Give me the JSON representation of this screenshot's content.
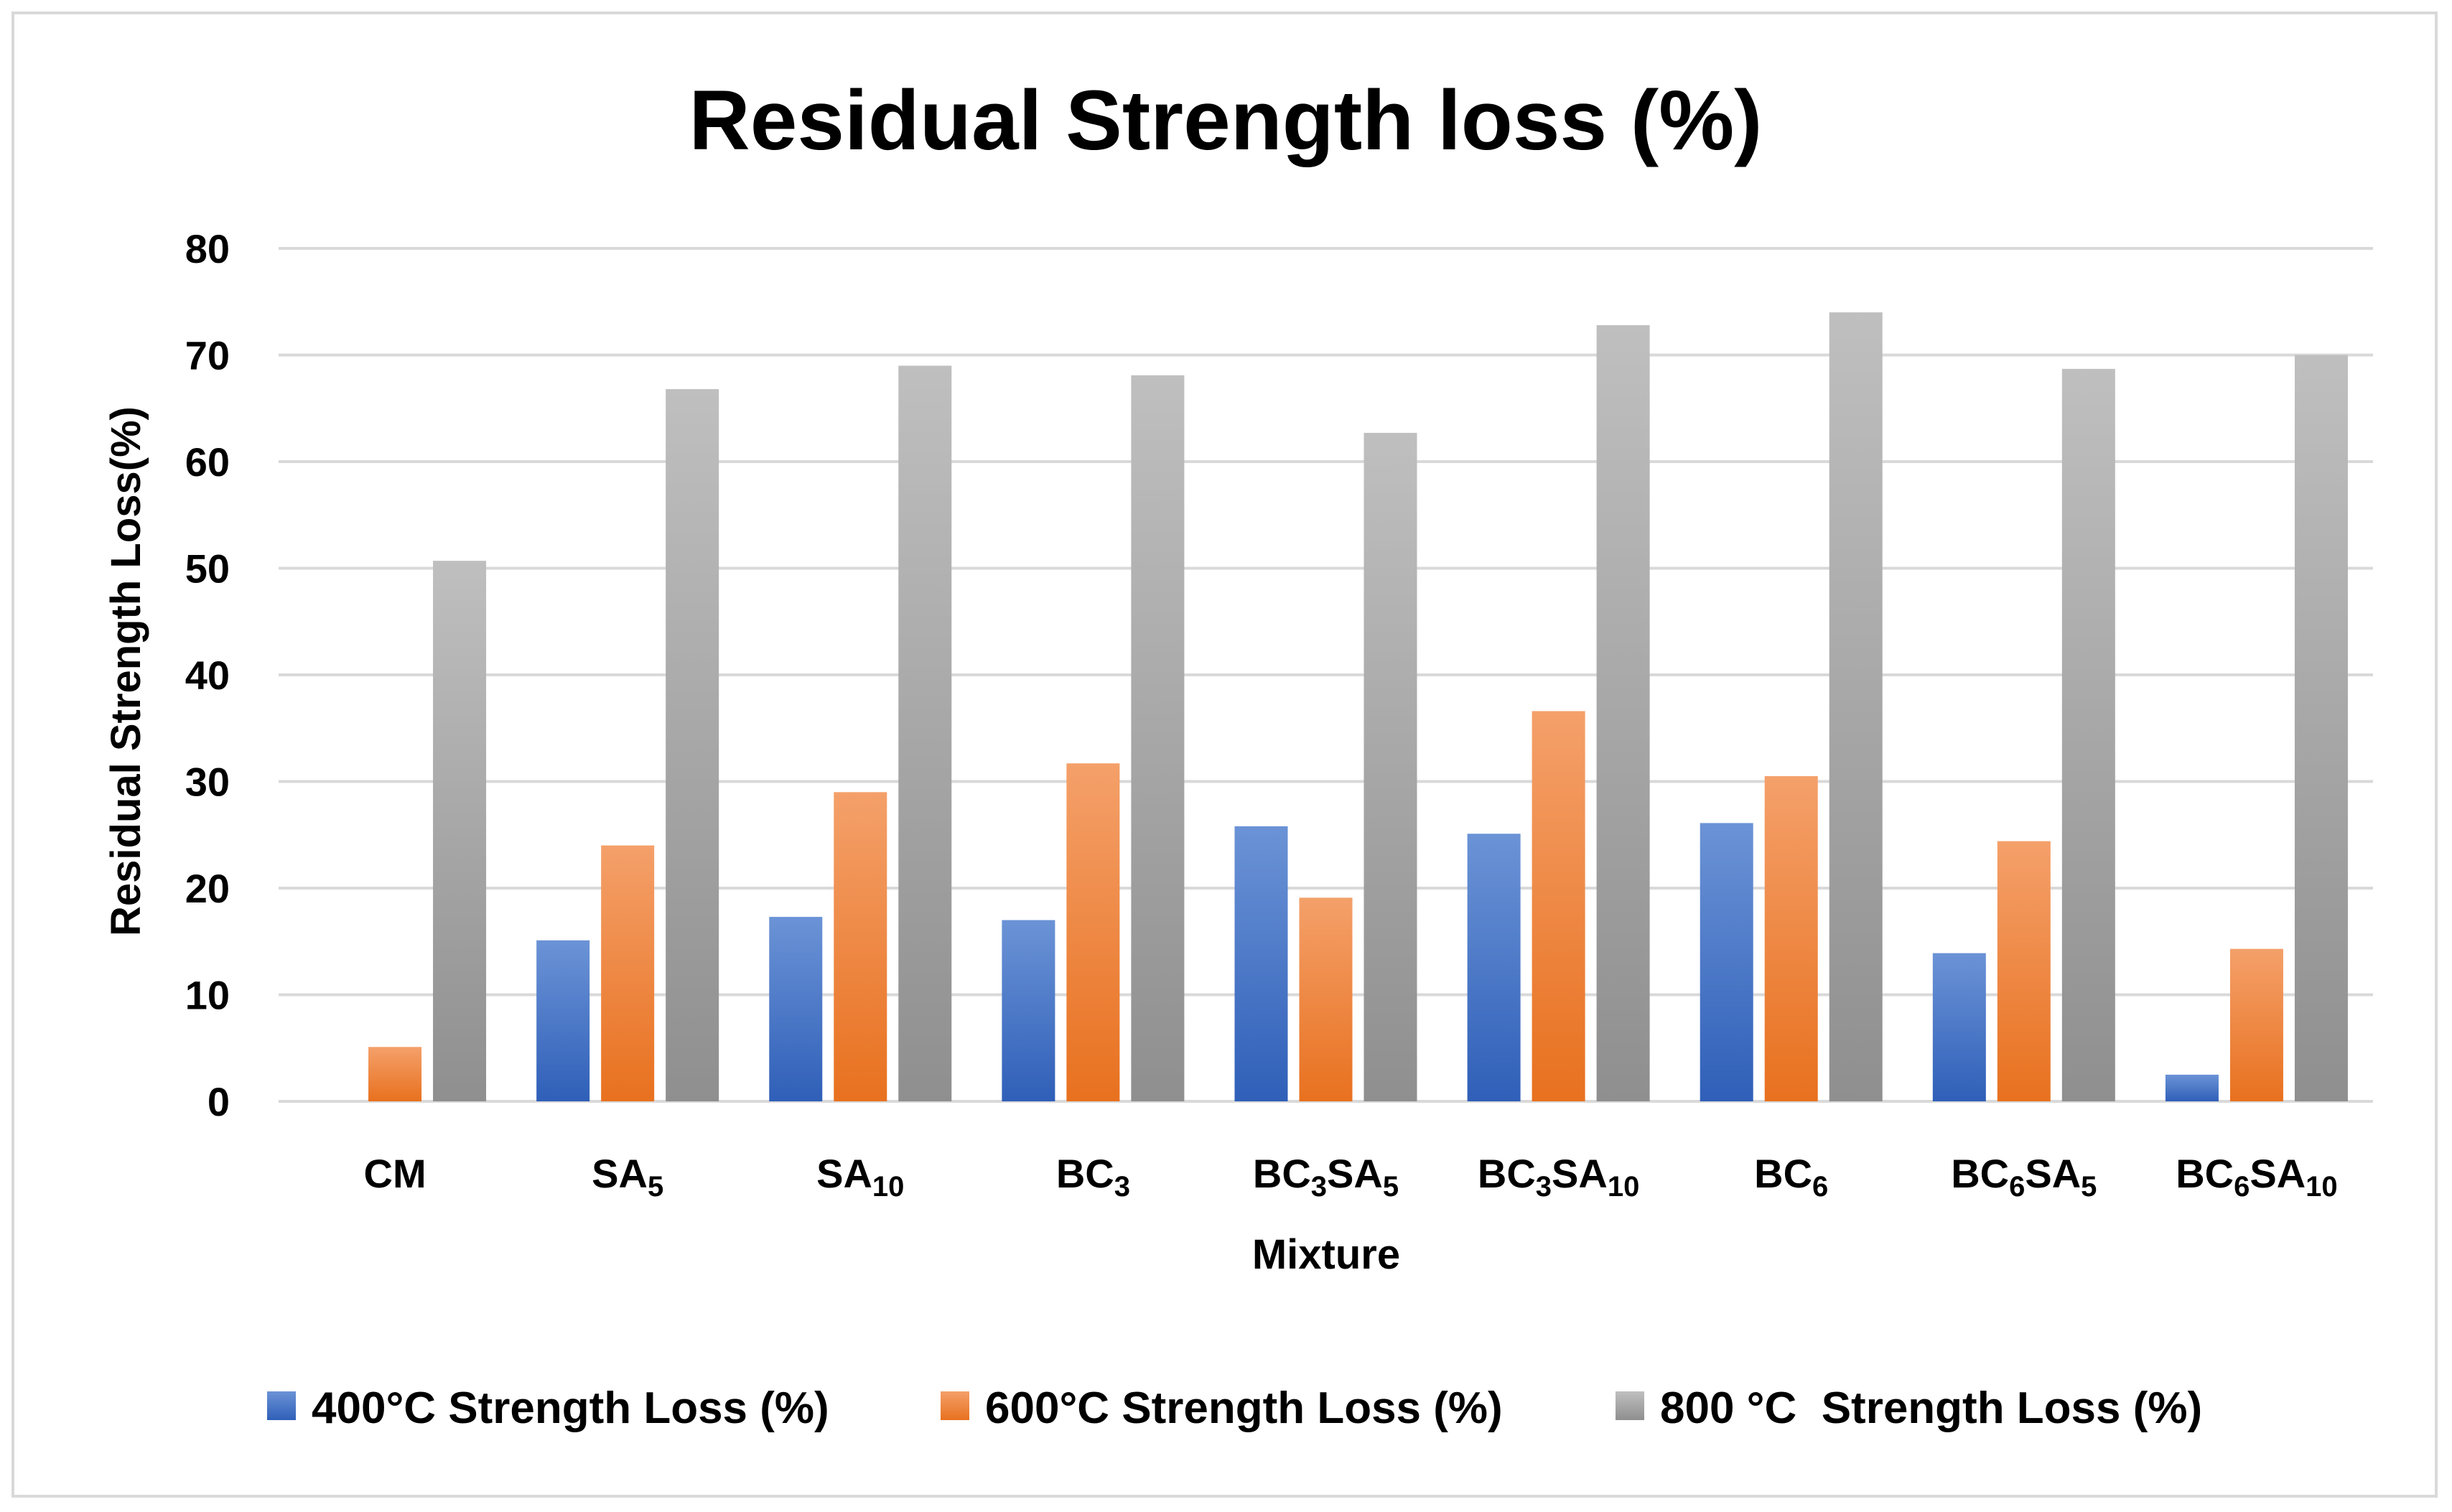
{
  "chart_data": {
    "type": "bar",
    "title": "Residual Strength loss (%)",
    "xlabel": "Mixture",
    "ylabel": "Residual Strength Loss(%)",
    "ylim": [
      0,
      80
    ],
    "yticks": [
      "0",
      "10",
      "20",
      "30",
      "40",
      "50",
      "60",
      "70",
      "80"
    ],
    "grid": true,
    "legend_position": "bottom",
    "categories": [
      {
        "base": "CM",
        "parts": [
          {
            "t": "CM",
            "sub": false
          }
        ]
      },
      {
        "base": "SA5",
        "parts": [
          {
            "t": "SA",
            "sub": false
          },
          {
            "t": "5",
            "sub": true
          }
        ]
      },
      {
        "base": "SA10",
        "parts": [
          {
            "t": "SA",
            "sub": false
          },
          {
            "t": "10",
            "sub": true
          }
        ]
      },
      {
        "base": "BC3",
        "parts": [
          {
            "t": "BC",
            "sub": false
          },
          {
            "t": "3",
            "sub": true
          }
        ]
      },
      {
        "base": "BC3SA5",
        "parts": [
          {
            "t": "BC",
            "sub": false
          },
          {
            "t": "3",
            "sub": true
          },
          {
            "t": "SA",
            "sub": false
          },
          {
            "t": "5",
            "sub": true
          }
        ]
      },
      {
        "base": "BC3SA10",
        "parts": [
          {
            "t": "BC",
            "sub": false
          },
          {
            "t": "3",
            "sub": true
          },
          {
            "t": "SA",
            "sub": false
          },
          {
            "t": "10",
            "sub": true
          }
        ]
      },
      {
        "base": "BC6",
        "parts": [
          {
            "t": "BC",
            "sub": false
          },
          {
            "t": "6",
            "sub": true
          }
        ]
      },
      {
        "base": "BC6SA5",
        "parts": [
          {
            "t": "BC",
            "sub": false
          },
          {
            "t": "6",
            "sub": true
          },
          {
            "t": "SA",
            "sub": false
          },
          {
            "t": "5",
            "sub": true
          }
        ]
      },
      {
        "base": "BC6SA10",
        "parts": [
          {
            "t": "BC",
            "sub": false
          },
          {
            "t": "6",
            "sub": true
          },
          {
            "t": "SA",
            "sub": false
          },
          {
            "t": "10",
            "sub": true
          }
        ]
      }
    ],
    "series": [
      {
        "name": "400°C Strength Loss (%)",
        "color": "#4472c4",
        "color_top": "#6b93d6",
        "color_bottom": "#2f5fb8",
        "values": [
          0,
          15.1,
          17.3,
          17.0,
          25.8,
          25.1,
          26.1,
          13.9,
          2.5
        ]
      },
      {
        "name": "600°C Strength Loss (%)",
        "color": "#ed7d31",
        "color_top": "#f4a06a",
        "color_bottom": "#e8711f",
        "values": [
          5.1,
          24.0,
          29.0,
          31.7,
          19.1,
          36.6,
          30.5,
          24.4,
          14.3
        ]
      },
      {
        "name": "800 °C  Strength Loss (%)",
        "color": "#a5a5a5",
        "color_top": "#bfbfbf",
        "color_bottom": "#8f8f8f",
        "values": [
          50.7,
          66.8,
          69.0,
          68.1,
          62.7,
          72.8,
          74.0,
          68.7,
          70.0
        ]
      }
    ]
  }
}
